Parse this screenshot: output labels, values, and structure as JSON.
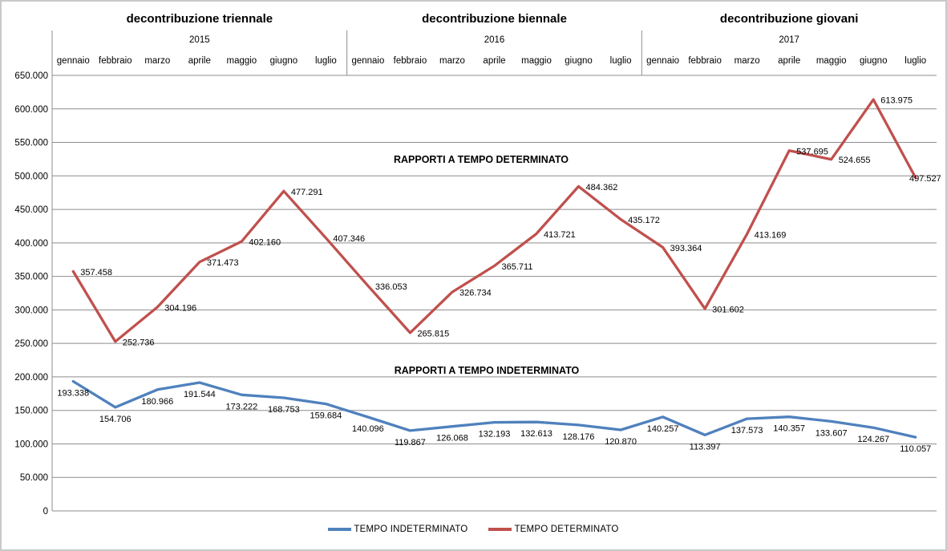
{
  "chart_data": {
    "type": "line",
    "groups": [
      {
        "title": "decontribuzione triennale",
        "year": "2015"
      },
      {
        "title": "decontribuzione biennale",
        "year": "2016"
      },
      {
        "title": "decontribuzione giovani",
        "year": "2017"
      }
    ],
    "months": [
      "gennaio",
      "febbraio",
      "marzo",
      "aprile",
      "maggio",
      "giugno",
      "luglio"
    ],
    "series": [
      {
        "name": "TEMPO INDETERMINATO",
        "color": "#4F81BD",
        "label_placement": "below",
        "values": [
          193338,
          154706,
          180966,
          191544,
          173222,
          168753,
          159684,
          140096,
          119867,
          126068,
          132193,
          132613,
          128176,
          120870,
          140257,
          113397,
          137573,
          140357,
          133607,
          124267,
          110057
        ]
      },
      {
        "name": "TEMPO DETERMINATO",
        "color": "#C0504D",
        "label_placement": "right",
        "values": [
          357458,
          252736,
          304196,
          371473,
          402160,
          477291,
          407346,
          336053,
          265815,
          326734,
          365711,
          413721,
          484362,
          435172,
          393364,
          301602,
          413169,
          537695,
          524655,
          613975,
          497527
        ]
      }
    ],
    "ylim": [
      0,
      650000
    ],
    "ytick_step": 50000,
    "grid": true,
    "legend_position": "bottom",
    "annotations": [
      {
        "text": "RAPPORTI A TEMPO DETERMINATO"
      },
      {
        "text": "RAPPORTI A TEMPO INDETERMINATO"
      }
    ],
    "colors": {
      "grid": "#8e8e8e",
      "axis": "#8e8e8e",
      "separator": "#8e8e8e",
      "text": "#000000",
      "data_label": "#000000"
    }
  }
}
